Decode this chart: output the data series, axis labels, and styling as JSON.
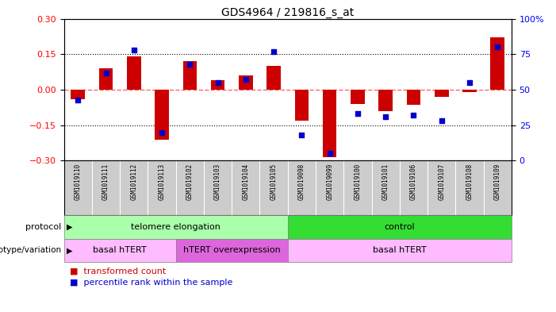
{
  "title": "GDS4964 / 219816_s_at",
  "samples": [
    "GSM1019110",
    "GSM1019111",
    "GSM1019112",
    "GSM1019113",
    "GSM1019102",
    "GSM1019103",
    "GSM1019104",
    "GSM1019105",
    "GSM1019098",
    "GSM1019099",
    "GSM1019100",
    "GSM1019101",
    "GSM1019106",
    "GSM1019107",
    "GSM1019108",
    "GSM1019109"
  ],
  "red_bars": [
    -0.04,
    0.09,
    0.14,
    -0.21,
    0.12,
    0.04,
    0.06,
    0.1,
    -0.13,
    -0.285,
    -0.06,
    -0.09,
    -0.065,
    -0.03,
    -0.01,
    0.22
  ],
  "blue_dots": [
    43,
    62,
    78,
    20,
    68,
    55,
    57,
    77,
    18,
    5,
    33,
    31,
    32,
    28,
    55,
    80
  ],
  "ylim_left": [
    -0.3,
    0.3
  ],
  "ylim_right": [
    0,
    100
  ],
  "yticks_left": [
    -0.3,
    -0.15,
    0,
    0.15,
    0.3
  ],
  "yticks_right": [
    0,
    25,
    50,
    75,
    100
  ],
  "protocol_groups": [
    {
      "label": "telomere elongation",
      "start": 0,
      "end": 8,
      "color": "#aaffaa"
    },
    {
      "label": "control",
      "start": 8,
      "end": 16,
      "color": "#33dd33"
    }
  ],
  "genotype_groups": [
    {
      "label": "basal hTERT",
      "start": 0,
      "end": 4,
      "color": "#ffbbff"
    },
    {
      "label": "hTERT overexpression",
      "start": 4,
      "end": 8,
      "color": "#dd66dd"
    },
    {
      "label": "basal hTERT",
      "start": 8,
      "end": 16,
      "color": "#ffbbff"
    }
  ],
  "red_color": "#cc0000",
  "blue_color": "#0000cc",
  "zero_line_color": "#ff6666",
  "bg_color": "#ffffff",
  "plot_bg": "#ffffff",
  "bar_width": 0.5,
  "dot_size": 18,
  "label_bg": "#cccccc"
}
